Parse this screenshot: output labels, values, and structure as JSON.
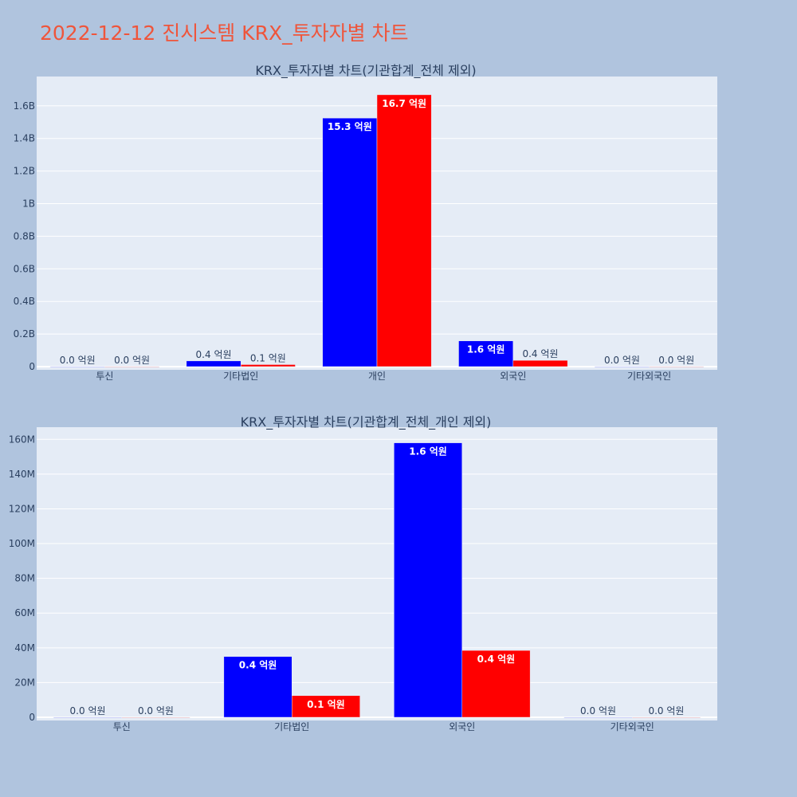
{
  "page": {
    "title": "2022-12-12 진시스템 KRX_투자자별 차트"
  },
  "colors": {
    "series1": "#0000ff",
    "series2": "#ff0000",
    "plot_bg": "#e5ecf6",
    "grid": "#ffffff",
    "text": "#2a3f5f",
    "title": "#ef553b"
  },
  "chart_data": [
    {
      "type": "bar",
      "title": "KRX_투자자별 차트(기관합계_전체 제외)",
      "categories": [
        "투신",
        "기타법인",
        "개인",
        "외국인",
        "기타외국인"
      ],
      "ylim": [
        0,
        1780000000
      ],
      "yticks": [
        {
          "v": 0,
          "label": "0"
        },
        {
          "v": 200000000,
          "label": "0.2B"
        },
        {
          "v": 400000000,
          "label": "0.4B"
        },
        {
          "v": 600000000,
          "label": "0.6B"
        },
        {
          "v": 800000000,
          "label": "0.8B"
        },
        {
          "v": 1000000000,
          "label": "1B"
        },
        {
          "v": 1200000000,
          "label": "1.2B"
        },
        {
          "v": 1400000000,
          "label": "1.4B"
        },
        {
          "v": 1600000000,
          "label": "1.6B"
        }
      ],
      "grid": true,
      "series": [
        {
          "values": [
            0,
            35000000,
            1525000000,
            158000000,
            0
          ],
          "labels": [
            "0.0 억원",
            "0.4 억원",
            "15.3 억원",
            "1.6 억원",
            "0.0 억원"
          ]
        },
        {
          "values": [
            0,
            12500000,
            1668000000,
            38500000,
            0
          ],
          "labels": [
            "0.0 억원",
            "0.1 억원",
            "16.7 억원",
            "0.4 억원",
            "0.0 억원"
          ]
        }
      ]
    },
    {
      "type": "bar",
      "title": "KRX_투자자별 차트(기관합계_전체_개인 제외)",
      "categories": [
        "투신",
        "기타법인",
        "외국인",
        "기타외국인"
      ],
      "ylim": [
        0,
        167000000
      ],
      "yticks": [
        {
          "v": 0,
          "label": "0"
        },
        {
          "v": 20000000,
          "label": "20M"
        },
        {
          "v": 40000000,
          "label": "40M"
        },
        {
          "v": 60000000,
          "label": "60M"
        },
        {
          "v": 80000000,
          "label": "80M"
        },
        {
          "v": 100000000,
          "label": "100M"
        },
        {
          "v": 120000000,
          "label": "120M"
        },
        {
          "v": 140000000,
          "label": "140M"
        },
        {
          "v": 160000000,
          "label": "160M"
        }
      ],
      "grid": true,
      "series": [
        {
          "values": [
            0,
            35000000,
            158000000,
            0
          ],
          "labels": [
            "0.0 억원",
            "0.4 억원",
            "1.6 억원",
            "0.0 억원"
          ]
        },
        {
          "values": [
            0,
            12500000,
            38500000,
            0
          ],
          "labels": [
            "0.0 억원",
            "0.1 억원",
            "0.4 억원",
            "0.0 억원"
          ]
        }
      ]
    }
  ]
}
